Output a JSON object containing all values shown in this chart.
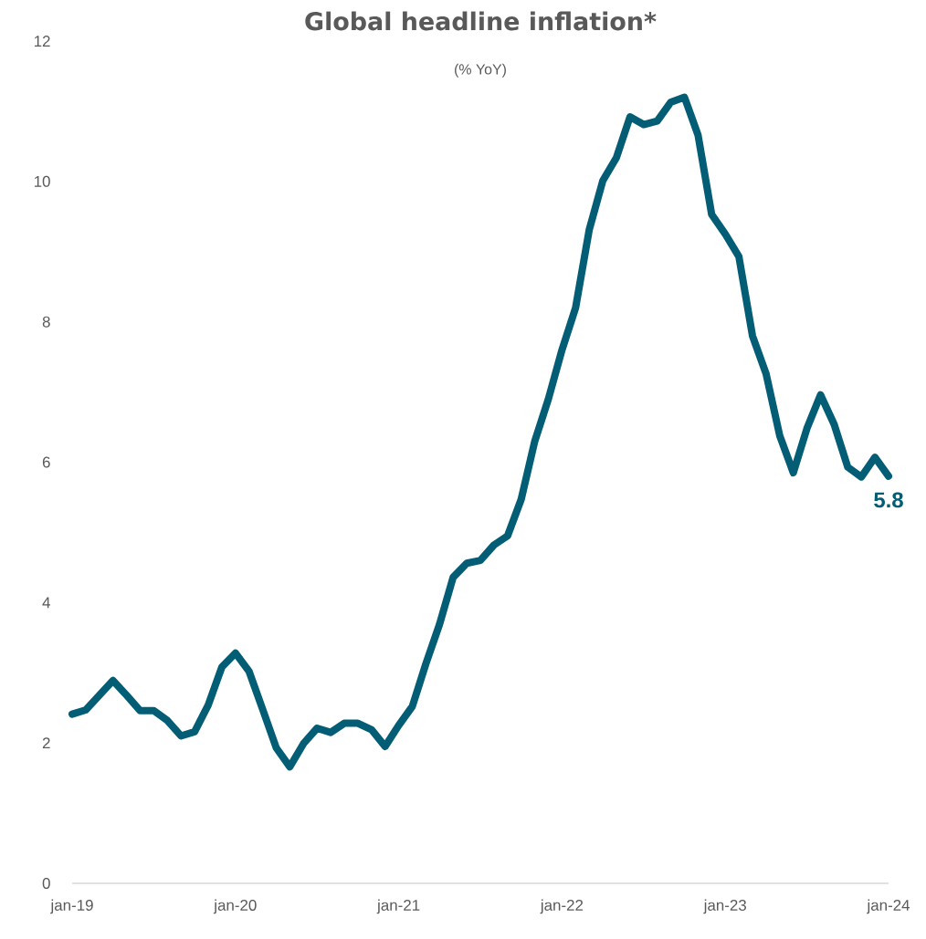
{
  "chart_data": {
    "type": "line",
    "title": "Global headline inflation*",
    "subtitle": "(% YoY)",
    "x": [
      "2019-01",
      "2019-02",
      "2019-03",
      "2019-04",
      "2019-05",
      "2019-06",
      "2019-07",
      "2019-08",
      "2019-09",
      "2019-10",
      "2019-11",
      "2019-12",
      "2020-01",
      "2020-02",
      "2020-03",
      "2020-04",
      "2020-05",
      "2020-06",
      "2020-07",
      "2020-08",
      "2020-09",
      "2020-10",
      "2020-11",
      "2020-12",
      "2021-01",
      "2021-02",
      "2021-03",
      "2021-04",
      "2021-05",
      "2021-06",
      "2021-07",
      "2021-08",
      "2021-09",
      "2021-10",
      "2021-11",
      "2021-12",
      "2022-01",
      "2022-02",
      "2022-03",
      "2022-04",
      "2022-05",
      "2022-06",
      "2022-07",
      "2022-08",
      "2022-09",
      "2022-10",
      "2022-11",
      "2022-12",
      "2023-01",
      "2023-02",
      "2023-03",
      "2023-04",
      "2023-05",
      "2023-06",
      "2023-07",
      "2023-08",
      "2023-09",
      "2023-10",
      "2023-11",
      "2023-12",
      "2024-01"
    ],
    "series": [
      {
        "color": "#035d75",
        "values": [
          2.41,
          2.47,
          2.68,
          2.89,
          2.68,
          2.46,
          2.46,
          2.32,
          2.1,
          2.16,
          2.54,
          3.08,
          3.28,
          3.02,
          2.48,
          1.93,
          1.66,
          1.99,
          2.21,
          2.15,
          2.28,
          2.28,
          2.19,
          1.95,
          2.25,
          2.52,
          3.13,
          3.69,
          4.36,
          4.56,
          4.6,
          4.82,
          4.95,
          5.47,
          6.3,
          6.9,
          7.6,
          8.2,
          9.31,
          10.01,
          10.34,
          10.92,
          10.81,
          10.86,
          11.13,
          11.2,
          10.66,
          9.53,
          9.25,
          8.93,
          7.8,
          7.26,
          6.38,
          5.85,
          6.48,
          6.96,
          6.54,
          5.93,
          5.79,
          6.07,
          5.8
        ]
      }
    ],
    "xlim": [
      "2019-01",
      "2024-01"
    ],
    "xticks": [
      {
        "value": "2019-01",
        "label": "jan-19"
      },
      {
        "value": "2020-01",
        "label": "jan-20"
      },
      {
        "value": "2021-01",
        "label": "jan-21"
      },
      {
        "value": "2022-01",
        "label": "jan-22"
      },
      {
        "value": "2023-01",
        "label": "jan-23"
      },
      {
        "value": "2024-01",
        "label": "jan-24"
      }
    ],
    "ylim": [
      0,
      12
    ],
    "yticks": [
      0,
      2,
      4,
      6,
      8,
      10,
      12
    ],
    "annotations": [
      {
        "text": "5.8",
        "x": "2024-01",
        "y": 5.8
      }
    ]
  }
}
